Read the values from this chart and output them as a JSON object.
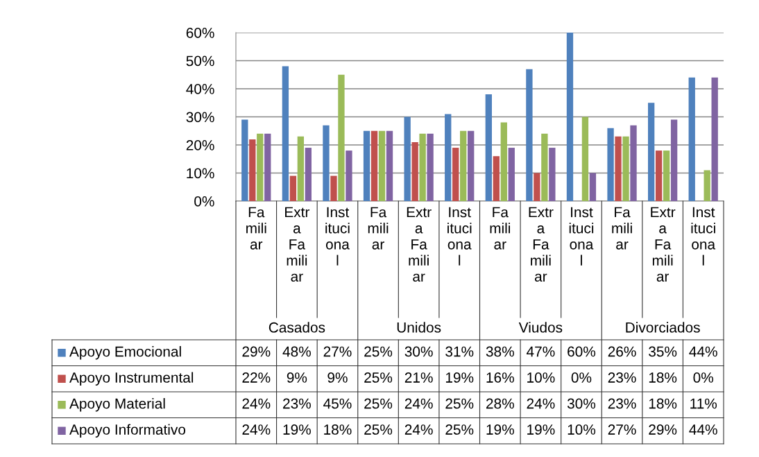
{
  "chart_data": {
    "type": "bar",
    "categories": [
      "Fa\nmili\nar",
      "Extr\na\nFa\nmili\nar",
      "Inst\nituci\nona\nl",
      "Fa\nmili\nar",
      "Extr\na\nFa\nmili\nar",
      "Inst\nituci\nona\nl",
      "Fa\nmili\nar",
      "Extr\na\nFa\nmili\nar",
      "Inst\nituci\nona\nl",
      "Fa\nmili\nar",
      "Extr\na\nFa\nmili\nar",
      "Inst\nituci\nona\nl"
    ],
    "annotations": [
      "Casados",
      "Unidos",
      "Viudos",
      "Divorciados"
    ],
    "series": [
      {
        "name": "Apoyo Emocional",
        "color": "#4f81bd",
        "values": [
          29,
          48,
          27,
          25,
          30,
          31,
          38,
          47,
          60,
          26,
          35,
          44
        ],
        "value_labels": [
          "29%",
          "48%",
          "27%",
          "25%",
          "30%",
          "31%",
          "38%",
          "47%",
          "60%",
          "26%",
          "35%",
          "44%"
        ]
      },
      {
        "name": "Apoyo Instrumental",
        "color": "#c0504d",
        "values": [
          22,
          9,
          9,
          25,
          21,
          19,
          16,
          10,
          0,
          23,
          18,
          0
        ],
        "value_labels": [
          "22%",
          "9%",
          "9%",
          "25%",
          "21%",
          "19%",
          "16%",
          "10%",
          "0%",
          "23%",
          "18%",
          "0%"
        ]
      },
      {
        "name": "Apoyo Material",
        "color": "#9bbb59",
        "values": [
          24,
          23,
          45,
          25,
          24,
          25,
          28,
          24,
          30,
          23,
          18,
          11
        ],
        "value_labels": [
          "24%",
          "23%",
          "45%",
          "25%",
          "24%",
          "25%",
          "28%",
          "24%",
          "30%",
          "23%",
          "18%",
          "11%"
        ]
      },
      {
        "name": "Apoyo Informativo",
        "color": "#8064a2",
        "values": [
          24,
          19,
          18,
          25,
          24,
          25,
          19,
          19,
          10,
          27,
          29,
          44
        ],
        "value_labels": [
          "24%",
          "19%",
          "18%",
          "25%",
          "24%",
          "25%",
          "19%",
          "19%",
          "10%",
          "27%",
          "29%",
          "44%"
        ]
      }
    ],
    "ylim": [
      0,
      60
    ],
    "yticks": [
      {
        "value": 0,
        "label": "0%"
      },
      {
        "value": 10,
        "label": "10%"
      },
      {
        "value": 20,
        "label": "20%"
      },
      {
        "value": 30,
        "label": "30%"
      },
      {
        "value": 40,
        "label": "40%"
      },
      {
        "value": 50,
        "label": "50%"
      },
      {
        "value": 60,
        "label": "60%"
      }
    ],
    "grid": "y",
    "legend": "bottom"
  }
}
